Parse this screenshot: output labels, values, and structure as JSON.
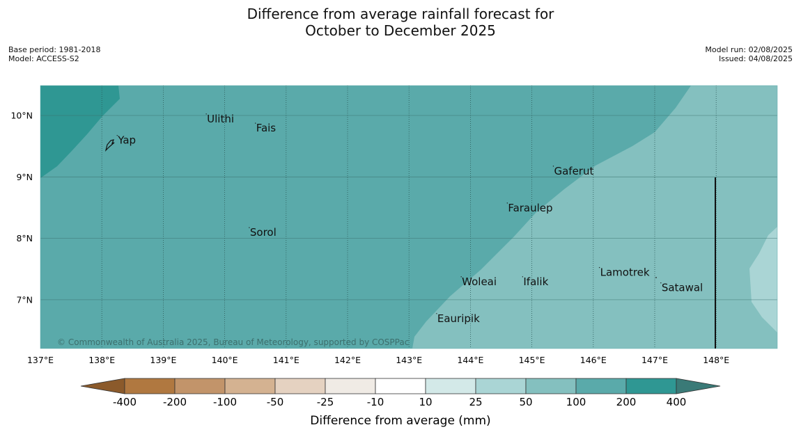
{
  "title": {
    "line1": "Difference from average rainfall forecast for",
    "line2": "October to December 2025"
  },
  "meta": {
    "base_period": "Base period: 1981-2018",
    "model": "Model: ACCESS-S2",
    "model_run": "Model run: 02/08/2025",
    "issued": "Issued: 04/08/2025"
  },
  "copyright": "© Commonwealth of Australia 2025, Bureau of Meteorology, supported by COSPPac",
  "axes": {
    "lon_labels": [
      "137°E",
      "138°E",
      "139°E",
      "140°E",
      "141°E",
      "142°E",
      "143°E",
      "144°E",
      "145°E",
      "146°E",
      "147°E",
      "148°E"
    ],
    "lat_labels": [
      "10°N",
      "9°N",
      "8°N",
      "7°N"
    ]
  },
  "places": [
    {
      "name": "Yap",
      "lon": 138.25,
      "lat": 9.55
    },
    {
      "name": "Ulithi",
      "lon": 139.7,
      "lat": 9.9
    },
    {
      "name": "Fais",
      "lon": 140.5,
      "lat": 9.75
    },
    {
      "name": "Sorol",
      "lon": 140.4,
      "lat": 8.05
    },
    {
      "name": "Gaferut",
      "lon": 145.35,
      "lat": 9.05
    },
    {
      "name": "Faraulep",
      "lon": 144.6,
      "lat": 8.45
    },
    {
      "name": "Woleai",
      "lon": 143.85,
      "lat": 7.25
    },
    {
      "name": "Ifalik",
      "lon": 144.85,
      "lat": 7.25
    },
    {
      "name": "Lamotrek",
      "lon": 146.1,
      "lat": 7.4
    },
    {
      "name": "Satawal",
      "lon": 147.1,
      "lat": 7.15
    },
    {
      "name": "Eauripik",
      "lon": 143.45,
      "lat": 6.65
    }
  ],
  "legend": {
    "title": "Difference from average (mm)",
    "ticks": [
      "-400",
      "-200",
      "-100",
      "-50",
      "-25",
      "-10",
      "10",
      "25",
      "50",
      "100",
      "200",
      "400"
    ],
    "colors": [
      "#8b5a2b",
      "#b07840",
      "#c2946a",
      "#d4b291",
      "#e5d2c1",
      "#f0ebe5",
      "#ffffff",
      "#d3e9e8",
      "#aad5d5",
      "#84c0bf",
      "#5aaaaa",
      "#2f9793",
      "#3a7a77"
    ]
  },
  "region_colors": {
    "band_200_400": "#2f9793",
    "band_100_200": "#5aaaaa",
    "band_50_100": "#84c0bf",
    "band_25_50": "#aad5d5"
  }
}
